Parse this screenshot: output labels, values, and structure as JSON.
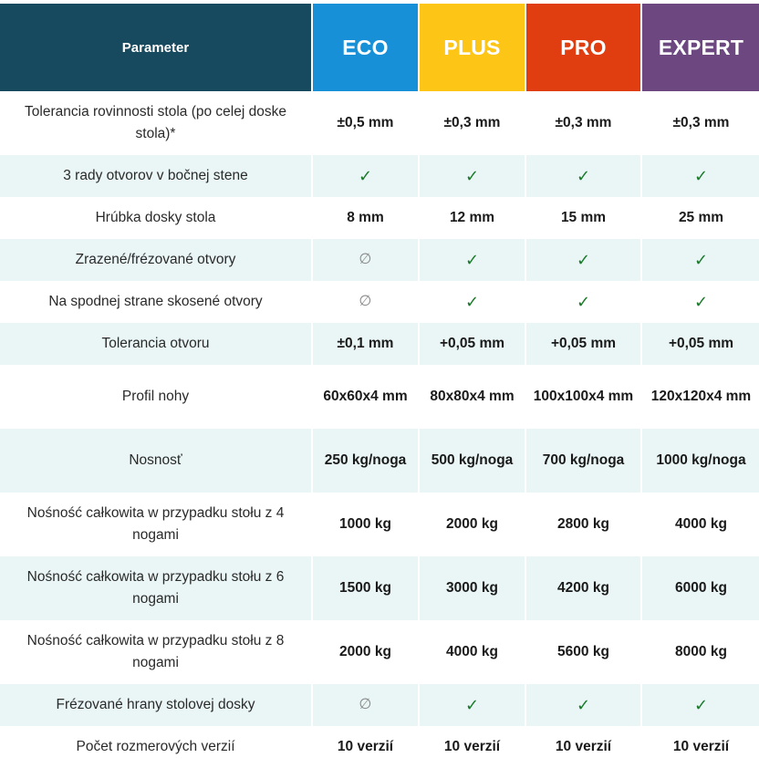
{
  "header": {
    "parameter": "Parameter",
    "plans": [
      "ECO",
      "PLUS",
      "PRO",
      "EXPERT"
    ]
  },
  "rows": [
    {
      "label": "Tolerancia rovinnosti stola (po celej doske stola)*",
      "values": [
        "±0,5 mm",
        "±0,3 mm",
        "±0,3 mm",
        "±0,3 mm"
      ]
    },
    {
      "label": "3 rady otvorov v bočnej stene",
      "values": [
        "✓",
        "✓",
        "✓",
        "✓"
      ]
    },
    {
      "label": "Hrúbka dosky stola",
      "values": [
        "8 mm",
        "12 mm",
        "15 mm",
        "25 mm"
      ]
    },
    {
      "label": "Zrazené/frézované otvory",
      "values": [
        "∅",
        "✓",
        "✓",
        "✓"
      ]
    },
    {
      "label": "Na spodnej strane skosené otvory",
      "values": [
        "∅",
        "✓",
        "✓",
        "✓"
      ]
    },
    {
      "label": "Tolerancia otvoru",
      "values": [
        "±0,1 mm",
        "+0,05 mm",
        "+0,05 mm",
        "+0,05 mm"
      ]
    },
    {
      "label": "Profil nohy",
      "values": [
        "60x60x4 mm",
        "80x80x4 mm",
        "100x100x4 mm",
        "120x120x4 mm"
      ]
    },
    {
      "label": "Nosnosť",
      "values": [
        "250 kg/noga",
        "500 kg/noga",
        "700 kg/noga",
        "1000 kg/noga"
      ]
    },
    {
      "label": "Nośność całkowita w przypadku stołu z 4 nogami",
      "values": [
        "1000 kg",
        "2000 kg",
        "2800 kg",
        "4000 kg"
      ]
    },
    {
      "label": "Nośność całkowita w przypadku stołu z 6 nogami",
      "values": [
        "1500 kg",
        "3000 kg",
        "4200 kg",
        "6000 kg"
      ]
    },
    {
      "label": "Nośność całkowita w przypadku stołu z 8 nogami",
      "values": [
        "2000 kg",
        "4000 kg",
        "5600 kg",
        "8000 kg"
      ]
    },
    {
      "label": "Frézované hrany stolovej dosky",
      "values": [
        "∅",
        "✓",
        "✓",
        "✓"
      ]
    },
    {
      "label": "Počet rozmerových verzií",
      "values": [
        "10 verzií",
        "10 verzií",
        "10 verzií",
        "10 verzií"
      ]
    }
  ],
  "colors": {
    "parameter_header": "#174a5e",
    "eco": "#1890d8",
    "plus": "#fdc515",
    "pro": "#e03e10",
    "expert": "#6c4780",
    "stripe": "#eaf6f6",
    "check": "#1a7a2a"
  }
}
